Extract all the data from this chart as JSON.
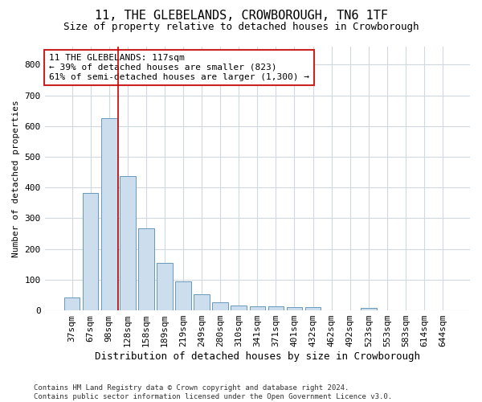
{
  "title": "11, THE GLEBELANDS, CROWBOROUGH, TN6 1TF",
  "subtitle": "Size of property relative to detached houses in Crowborough",
  "xlabel": "Distribution of detached houses by size in Crowborough",
  "ylabel": "Number of detached properties",
  "categories": [
    "37sqm",
    "67sqm",
    "98sqm",
    "128sqm",
    "158sqm",
    "189sqm",
    "219sqm",
    "249sqm",
    "280sqm",
    "310sqm",
    "341sqm",
    "371sqm",
    "401sqm",
    "432sqm",
    "462sqm",
    "492sqm",
    "523sqm",
    "553sqm",
    "583sqm",
    "614sqm",
    "644sqm"
  ],
  "values": [
    43,
    382,
    625,
    437,
    268,
    155,
    95,
    52,
    27,
    15,
    12,
    12,
    10,
    10,
    0,
    0,
    8,
    0,
    0,
    0,
    0
  ],
  "bar_color": "#ccdded",
  "bar_edge_color": "#6699bb",
  "vline_x": 2.5,
  "vline_color": "#cc0000",
  "annotation_line1": "11 THE GLEBELANDS: 117sqm",
  "annotation_line2": "← 39% of detached houses are smaller (823)",
  "annotation_line3": "61% of semi-detached houses are larger (1,300) →",
  "annotation_box_color": "#ffffff",
  "annotation_box_edge": "#cc2222",
  "ylim": [
    0,
    860
  ],
  "yticks": [
    0,
    100,
    200,
    300,
    400,
    500,
    600,
    700,
    800
  ],
  "footer": "Contains HM Land Registry data © Crown copyright and database right 2024.\nContains public sector information licensed under the Open Government Licence v3.0.",
  "title_fontsize": 11,
  "subtitle_fontsize": 9,
  "xlabel_fontsize": 9,
  "ylabel_fontsize": 8,
  "tick_fontsize": 8,
  "footer_fontsize": 6.5,
  "background_color": "#ffffff",
  "plot_background": "#ffffff",
  "grid_color": "#d0d8e0"
}
